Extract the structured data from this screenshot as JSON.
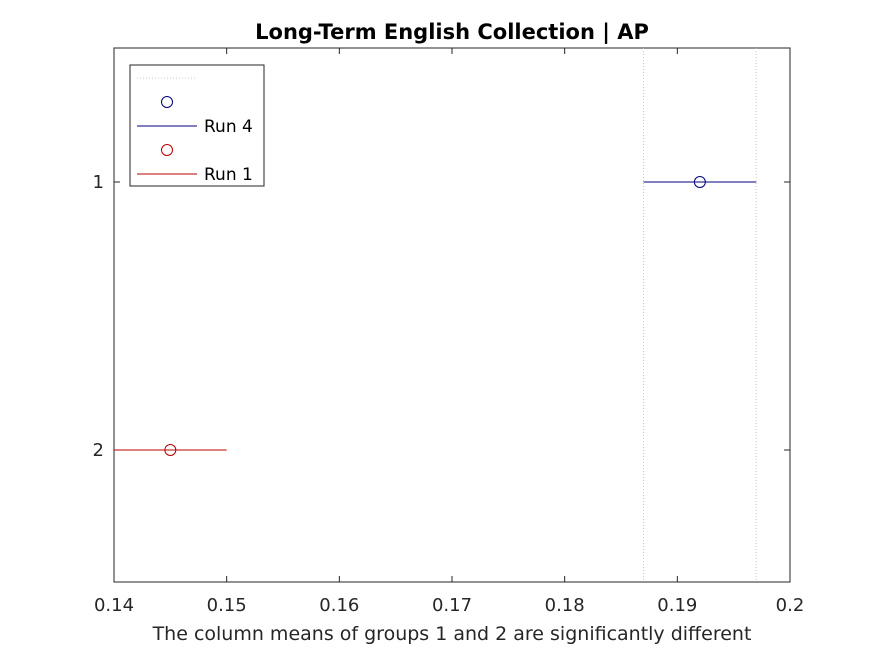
{
  "chart_data": {
    "type": "multiple-comparison",
    "title": "Long-Term English Collection | AP",
    "xlabel": "The column means of groups 1 and 2 are significantly different",
    "ylabel": "",
    "xlim": [
      0.14,
      0.2
    ],
    "x_ticks": [
      "0.14",
      "0.15",
      "0.16",
      "0.17",
      "0.18",
      "0.19",
      "0.2"
    ],
    "y_ticks": [
      "1",
      "2"
    ],
    "grid": false,
    "legend": {
      "position": "top-left",
      "entries": [
        {
          "label": "",
          "kind": "dotted-line"
        },
        {
          "label": "",
          "kind": "marker",
          "color": "#00007f"
        },
        {
          "label": "Run 4",
          "kind": "line",
          "color": "#00007f"
        },
        {
          "label": "",
          "kind": "marker",
          "color": "#bf0000"
        },
        {
          "label": "Run 1",
          "kind": "line",
          "color": "#bf0000"
        }
      ]
    },
    "groups": [
      {
        "group": 1,
        "mean": 0.192,
        "lower": 0.187,
        "upper": 0.197,
        "color": "#00007f",
        "highlighted": true
      },
      {
        "group": 2,
        "mean": 0.145,
        "lower": 0.14,
        "upper": 0.15,
        "color": "#bf0000",
        "highlighted": false
      }
    ],
    "reference_lines": [
      0.187,
      0.197
    ]
  }
}
